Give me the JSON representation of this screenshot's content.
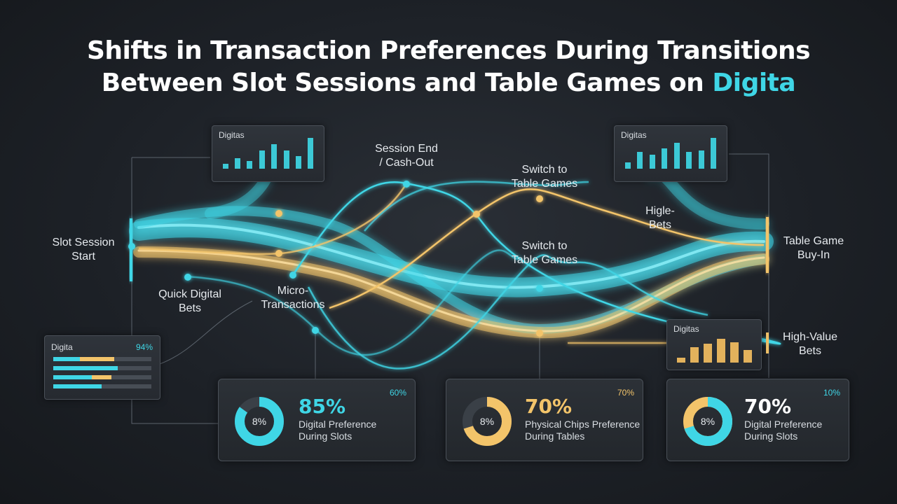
{
  "title": {
    "line1": "Shifts in Transaction Preferences During Transitions",
    "line2_main": "Between Slot Sessions and Table Games on ",
    "line2_accent": "Digita"
  },
  "colors": {
    "teal": "#3fd6e6",
    "gold": "#f3c46a",
    "background": "#1d2127"
  },
  "labels": {
    "slot_start": "Slot Session\nStart",
    "quick_bets": "Quick Digital\nBets",
    "micro": "Micro-\nTransactions",
    "session_end": "Session End\n/ Cash-Out",
    "switch_top": "Switch to\nTable Games",
    "switch_mid": "Switch to\nTable Games",
    "higle": "Higle-\nBets",
    "table_buyin": "Table Game\nBuy-In",
    "high_value": "High-Value\nBets"
  },
  "panels": {
    "left_chart_title": "Digitas",
    "right_chart_title": "Digitas",
    "right_small_title": "Digitas",
    "left_list_title": "Digita",
    "left_list_pct": "94%"
  },
  "mini_charts": {
    "left_bars": [
      0.15,
      0.35,
      0.25,
      0.6,
      0.8,
      0.6,
      0.4,
      1.0
    ],
    "right_bars": [
      0.2,
      0.55,
      0.45,
      0.65,
      0.85,
      0.55,
      0.6,
      1.0
    ],
    "small_gold_bars": [
      0.2,
      0.6,
      0.75,
      0.95,
      0.8,
      0.5
    ]
  },
  "list_bars": [
    {
      "teal": 0.27,
      "gold": 0.62
    },
    {
      "teal": 0.66,
      "gold": 0
    },
    {
      "teal": 0.39,
      "gold": 0.59
    },
    {
      "teal": 0.49,
      "gold": 0
    }
  ],
  "stats": [
    {
      "big": "85%",
      "line1": "Digital Preference",
      "line2": "During Slots",
      "corner": "60%",
      "ring_label": "8%",
      "fill": 0.85,
      "color": "#3fd6e6"
    },
    {
      "big": "70%",
      "line1": "Physical Chips Preference",
      "line2": "During Tables",
      "corner": "70%",
      "ring_label": "8%",
      "fill": 0.7,
      "color": "#f3c46a"
    },
    {
      "big": "70%",
      "line1": "Digital Preference",
      "line2": "During Slots",
      "corner": "10%",
      "ring_label": "8%",
      "fill": 0.7,
      "color": "#3fd6e6"
    }
  ]
}
